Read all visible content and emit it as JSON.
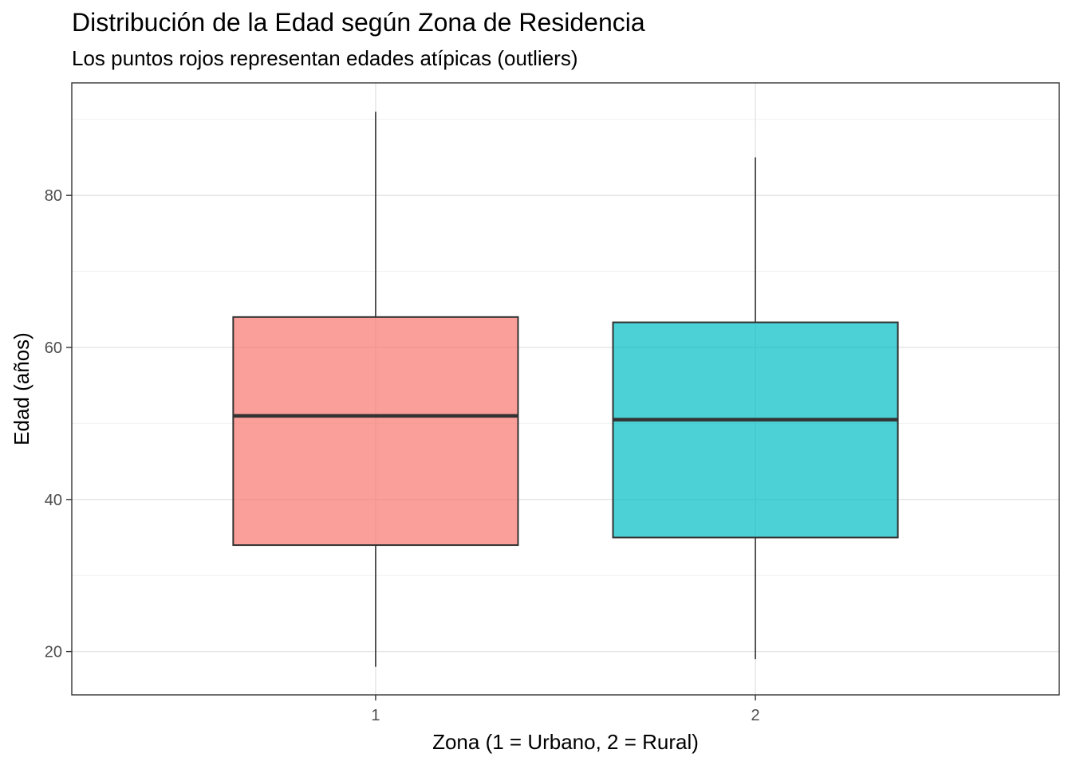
{
  "chart_data": {
    "type": "boxplot",
    "title": "Distribución de la Edad según Zona de Residencia",
    "subtitle": "Los puntos rojos representan edades atípicas (outliers)",
    "xlabel": "Zona (1 = Urbano, 2 = Rural)",
    "ylabel": "Edad (años)",
    "ylim": [
      14.3,
      94.8
    ],
    "y_ticks": [
      20,
      40,
      60,
      80
    ],
    "x_ticks": [
      "1",
      "2"
    ],
    "grid": true,
    "boxes": [
      {
        "category": "1",
        "min": 18,
        "q1": 34,
        "median": 51,
        "q3": 64,
        "max": 91,
        "color": "#F8766D"
      },
      {
        "category": "2",
        "min": 19,
        "q1": 35,
        "median": 50.5,
        "q3": 63.3,
        "max": 85,
        "color": "#00BFC4"
      }
    ]
  }
}
